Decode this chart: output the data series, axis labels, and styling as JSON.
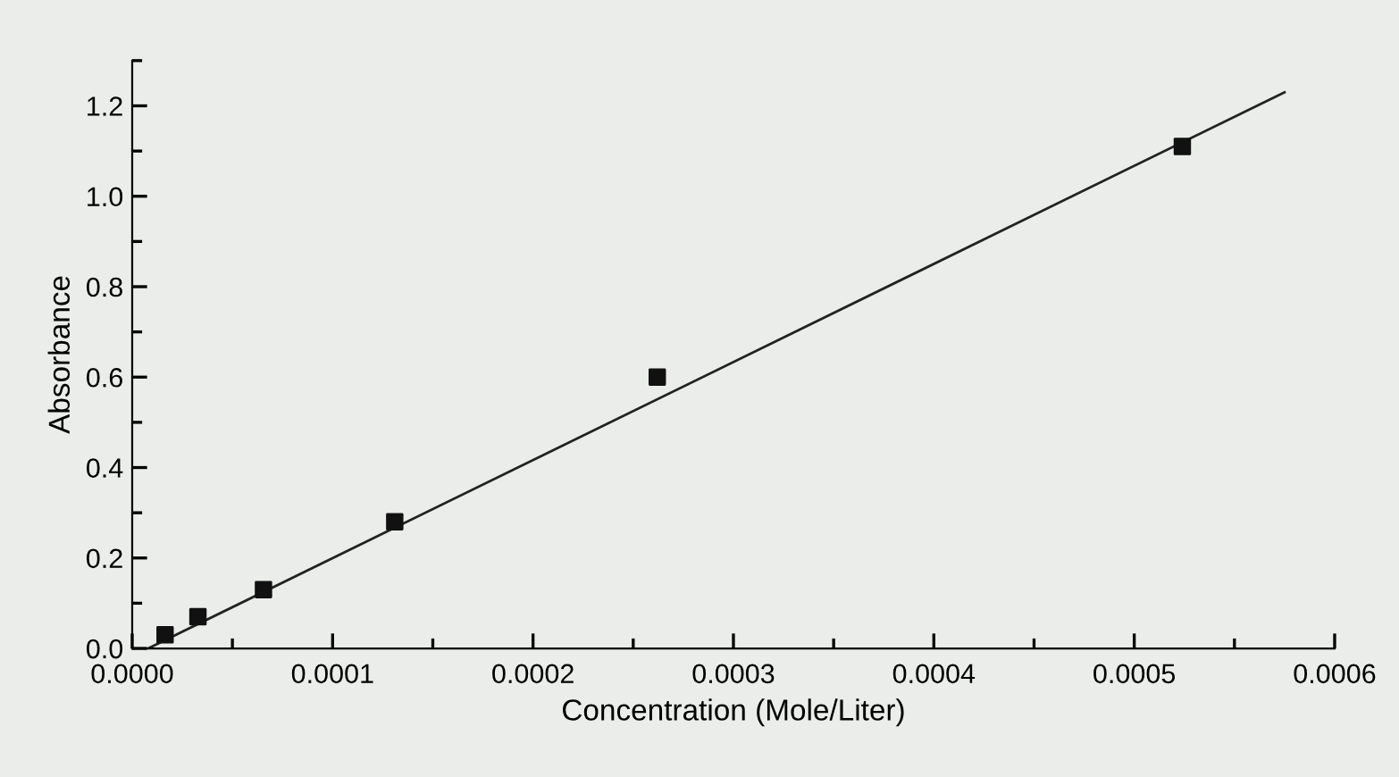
{
  "chart_data": {
    "type": "scatter",
    "xlabel": "Concentration (Mole/Liter)",
    "ylabel": "Absorbance",
    "x": [
      1.64e-05,
      3.28e-05,
      6.55e-05,
      0.000131,
      0.000262,
      0.000524
    ],
    "series": [
      {
        "color": "#111111",
        "marker": "square",
        "values": [
          0.03,
          0.07,
          0.13,
          0.28,
          0.6,
          1.11
        ]
      },
      {
        "type": "line",
        "color": "#222222",
        "marker": "none",
        "line_style": "solid",
        "x": [
          8e-06,
          0.000575
        ],
        "values": [
          0.0,
          1.23
        ]
      }
    ],
    "xlim": [
      0.0,
      0.0006
    ],
    "ylim": [
      0.0,
      1.3
    ],
    "xticks": [
      {
        "value": 0.0,
        "label": "0.0000"
      },
      {
        "value": 0.0001,
        "label": "0.0001"
      },
      {
        "value": 0.0002,
        "label": "0.0002"
      },
      {
        "value": 0.0003,
        "label": "0.0003"
      },
      {
        "value": 0.0004,
        "label": "0.0004"
      },
      {
        "value": 0.0005,
        "label": "0.0005"
      },
      {
        "value": 0.0006,
        "label": "0.0006"
      }
    ],
    "yticks": [
      {
        "value": 0.0,
        "label": "0.0"
      },
      {
        "value": 0.2,
        "label": "0.2"
      },
      {
        "value": 0.4,
        "label": "0.4"
      },
      {
        "value": 0.6,
        "label": "0.6"
      },
      {
        "value": 0.8,
        "label": "0.8"
      },
      {
        "value": 1.0,
        "label": "1.0"
      },
      {
        "value": 1.2,
        "label": "1.2"
      }
    ],
    "grid": false,
    "legend": false
  }
}
